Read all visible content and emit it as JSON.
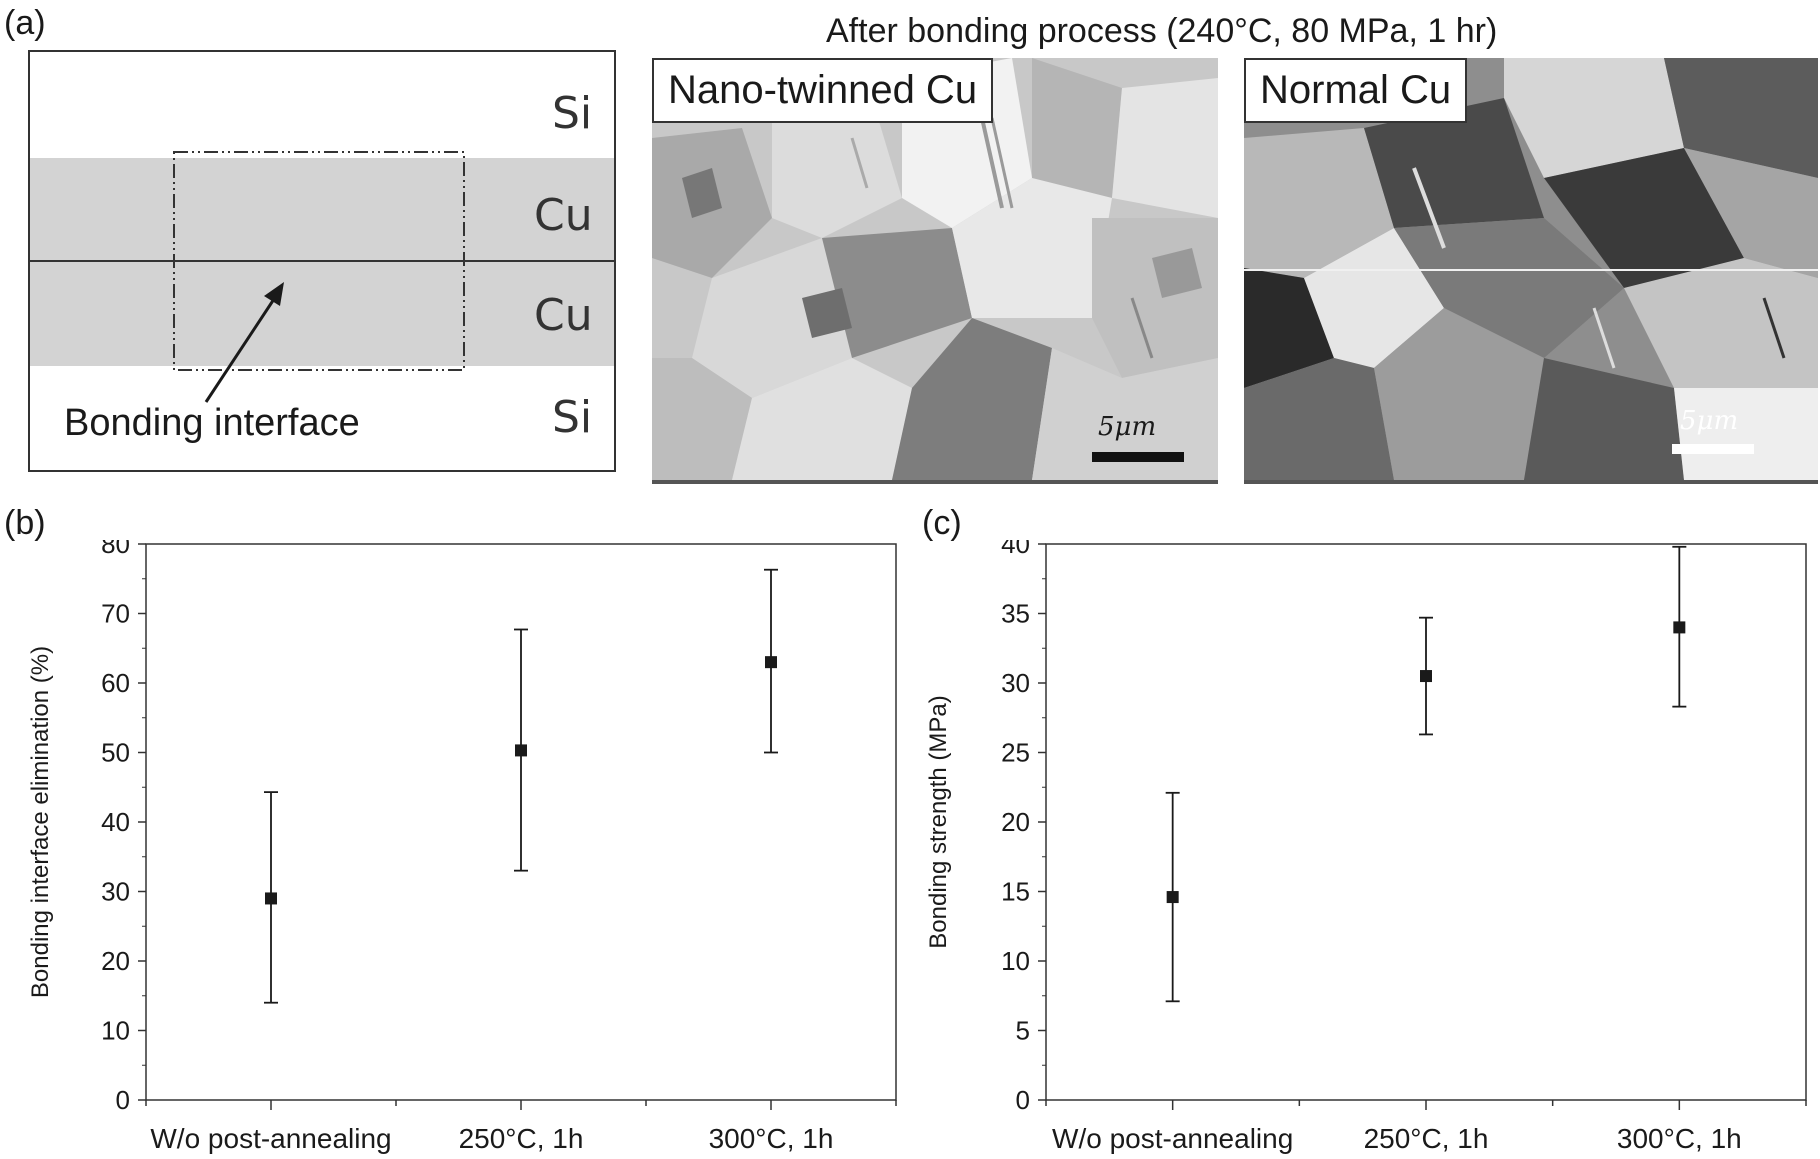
{
  "panel_a": {
    "label": "(a)",
    "layers": [
      "Si",
      "Cu",
      "Cu",
      "Si"
    ],
    "annotation": "Bonding interface",
    "header": "After bonding process (240°C, 80 MPa, 1 hr)",
    "image_left_label": "Nano-twinned Cu",
    "image_right_label": "Normal Cu",
    "scale_bar": "5μm",
    "colors": {
      "cu_fill": "#d3d3d3",
      "line": "#333333"
    }
  },
  "panel_b": {
    "label": "(b)"
  },
  "panel_c": {
    "label": "(c)"
  },
  "chart_data": [
    {
      "type": "scatter",
      "panel": "(b)",
      "title": "",
      "xlabel": "",
      "ylabel": "Bonding interface elimination (%)",
      "categories": [
        "W/o post-annealing",
        "250°C, 1h",
        "300°C, 1h"
      ],
      "values": [
        29,
        50.3,
        63
      ],
      "err_low": [
        14,
        33,
        50
      ],
      "err_high": [
        44.3,
        67.7,
        76.3
      ],
      "ylim": [
        0,
        80
      ],
      "yticks": [
        "0",
        "10",
        "20",
        "30",
        "40",
        "50",
        "60",
        "70",
        "80"
      ],
      "grid": false,
      "marker": "square",
      "color": "#1a1a1a"
    },
    {
      "type": "scatter",
      "panel": "(c)",
      "title": "",
      "xlabel": "",
      "ylabel": "Bonding strength (MPa)",
      "categories": [
        "W/o post-annealing",
        "250°C, 1h",
        "300°C, 1h"
      ],
      "values": [
        14.6,
        30.5,
        34
      ],
      "err_low": [
        7.1,
        26.3,
        28.3
      ],
      "err_high": [
        22.1,
        34.7,
        39.8
      ],
      "ylim": [
        0,
        40
      ],
      "yticks": [
        "0",
        "5",
        "10",
        "15",
        "20",
        "25",
        "30",
        "35",
        "40"
      ],
      "grid": false,
      "marker": "square",
      "color": "#1a1a1a"
    }
  ]
}
